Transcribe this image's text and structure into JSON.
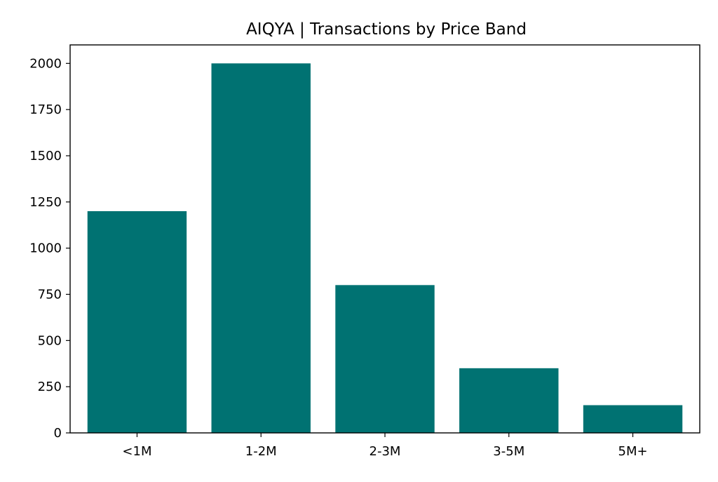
{
  "chart_data": {
    "type": "bar",
    "title": "AIQYA | Transactions by Price Band",
    "xlabel": "",
    "ylabel": "",
    "categories": [
      "<1M",
      "1-2M",
      "2-3M",
      "3-5M",
      "5M+"
    ],
    "values": [
      1200,
      2000,
      800,
      350,
      150
    ],
    "ylim": [
      0,
      2100
    ],
    "yticks": [
      0,
      250,
      500,
      750,
      1000,
      1250,
      1500,
      1750,
      2000
    ],
    "bar_color": "#007272",
    "grid": false,
    "legend": "none"
  }
}
